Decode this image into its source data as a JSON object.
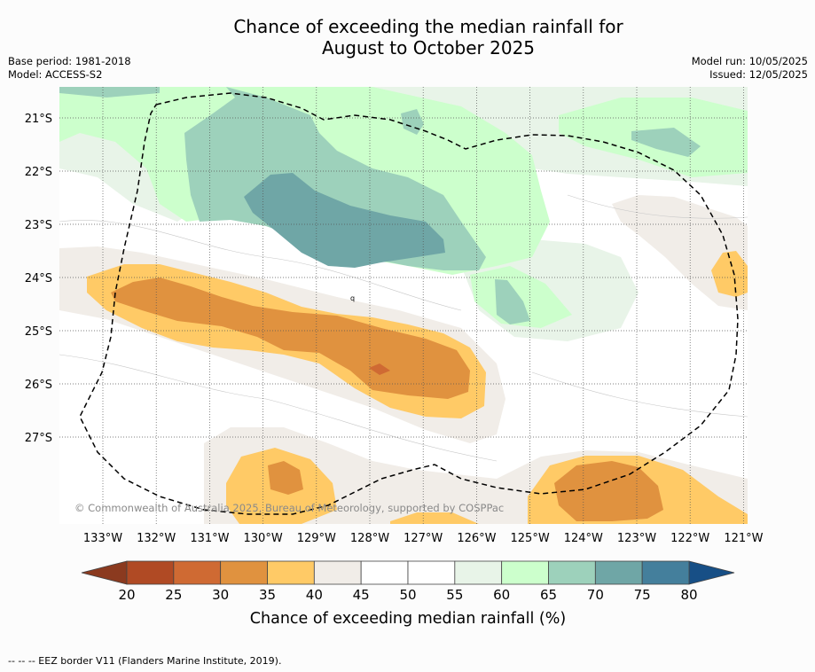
{
  "title": {
    "line1": "Chance of exceeding the median rainfall for",
    "line2": "August to October 2025"
  },
  "info_left": {
    "base_period": "Base period: 1981-2018",
    "model": "Model: ACCESS-S2"
  },
  "info_right": {
    "model_run": "Model run: 10/05/2025",
    "issued": "Issued: 12/05/2025"
  },
  "map": {
    "lat_labels": [
      "21°S",
      "22°S",
      "23°S",
      "24°S",
      "25°S",
      "26°S",
      "27°S"
    ],
    "lon_labels": [
      "133°W",
      "132°W",
      "131°W",
      "130°W",
      "129°W",
      "128°W",
      "127°W",
      "126°W",
      "125°W",
      "124°W",
      "123°W",
      "122°W",
      "121°W"
    ],
    "copyright": "© Commonwealth of Australia 2025, Bureau of Meteorology, supported by COSPPac",
    "marker_label": "q"
  },
  "colorbar": {
    "ticks": [
      "20",
      "25",
      "30",
      "35",
      "40",
      "45",
      "50",
      "55",
      "60",
      "65",
      "70",
      "75",
      "80"
    ],
    "colors": [
      "#b04a24",
      "#cf6a33",
      "#e0923f",
      "#ffca66",
      "#f1ede8",
      "#ffffff",
      "#ffffff",
      "#e8f4e8",
      "#ccffcc",
      "#9dd1bb",
      "#6fa6a6",
      "#447f9c"
    ],
    "under_color": "#8b3a1f",
    "over_color": "#174f86",
    "label": "Chance of exceeding median rainfall (%)"
  },
  "footer": "--  --  -- EEZ border V11 (Flanders Marine Institute, 2019)."
}
